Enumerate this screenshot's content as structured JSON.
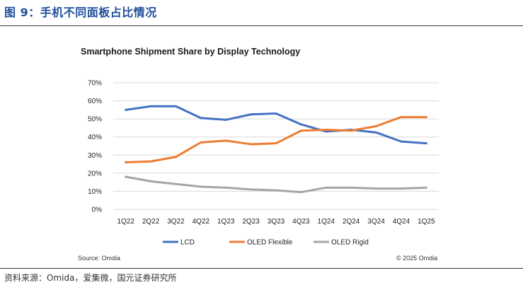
{
  "header": {
    "figure_title": "图 9：手机不同面板占比情况"
  },
  "footer": {
    "source_note": "资料来源：Omida，爱集微，国元证券研究所"
  },
  "colors": {
    "lcd": "#4472c4",
    "oled_flexible": "#ed7d31",
    "oled_rigid": "#a5a5a5",
    "grid": "#d9d9d9",
    "header_blue": "#1f4e9a"
  },
  "chart_data": {
    "type": "line",
    "title": "Smartphone Shipment Share by Display Technology",
    "categories": [
      "1Q22",
      "2Q22",
      "3Q22",
      "4Q22",
      "1Q23",
      "2Q23",
      "3Q23",
      "4Q23",
      "1Q24",
      "2Q24",
      "3Q24",
      "4Q24",
      "1Q25"
    ],
    "y_ticks": [
      "0%",
      "10%",
      "20%",
      "30%",
      "40%",
      "50%",
      "60%",
      "70%"
    ],
    "ylim": [
      0,
      70
    ],
    "grid": true,
    "legend_position": "bottom",
    "series": [
      {
        "name": "LCD",
        "color": "#4472c4",
        "values": [
          55,
          57,
          57,
          50.5,
          49.5,
          52.5,
          53,
          47,
          43,
          44,
          42.5,
          37.5,
          36.5
        ]
      },
      {
        "name": "OLED Flexible",
        "color": "#ed7d31",
        "values": [
          26,
          26.5,
          29,
          37,
          38,
          36,
          36.5,
          43.5,
          44,
          43.5,
          46,
          51,
          51
        ]
      },
      {
        "name": "OLED Rigid",
        "color": "#a5a5a5",
        "values": [
          18,
          15.5,
          14,
          12.5,
          12,
          11,
          10.5,
          9.5,
          12,
          12,
          11.5,
          11.5,
          12
        ]
      }
    ],
    "source": "Source: Omdia",
    "copyright": "© 2025 Omdia"
  }
}
